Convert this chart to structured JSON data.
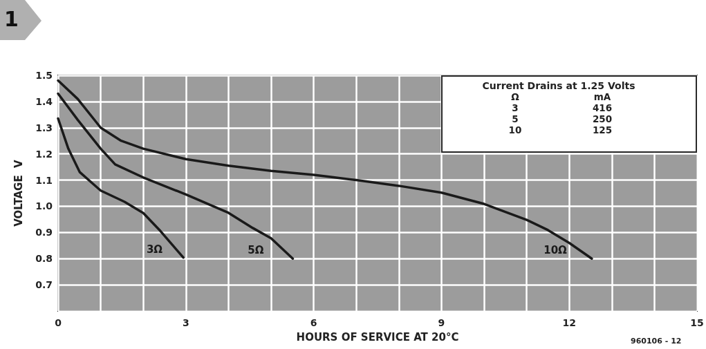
{
  "chart_data": {
    "type": "line",
    "xlabel": "HOURS OF SERVICE AT 20°C",
    "ylabel": "VOLTAGE  V",
    "annotations": [
      "Current Drains at 1.25 Volts",
      "Ω",
      "mA",
      "3",
      "416",
      "5",
      "250",
      "10",
      "125",
      "960106 - 12",
      "1"
    ],
    "series": [
      {
        "name": "3Ω",
        "color": "#1a1a1a",
        "x": [
          0,
          0.24,
          0.51,
          1,
          1.56,
          2,
          2.41,
          2.94
        ],
        "values": [
          1.335,
          1.22,
          1.13,
          1.06,
          1.017,
          0.974,
          0.904,
          0.804
        ]
      },
      {
        "name": "5Ω",
        "color": "#1a1a1a",
        "x": [
          0,
          0.46,
          1,
          1.34,
          2,
          3,
          4,
          4.57,
          5,
          5.51
        ],
        "values": [
          1.43,
          1.33,
          1.22,
          1.16,
          1.11,
          1.045,
          0.975,
          0.917,
          0.878,
          0.8
        ]
      },
      {
        "name": "10Ω",
        "color": "#1a1a1a",
        "x": [
          0,
          0.46,
          1,
          1.48,
          2,
          3,
          4,
          5,
          6,
          7,
          8,
          9,
          10,
          11,
          11.5,
          12,
          12.53
        ],
        "values": [
          1.48,
          1.41,
          1.3,
          1.25,
          1.22,
          1.18,
          1.155,
          1.135,
          1.12,
          1.1,
          1.078,
          1.052,
          1.009,
          0.948,
          0.909,
          0.86,
          0.8
        ]
      }
    ],
    "xlim": [
      0,
      15
    ],
    "xticks": [
      0,
      {
        "value": 1,
        "label": null
      },
      {
        "value": 2,
        "label": null
      },
      3,
      {
        "value": 4,
        "label": null
      },
      {
        "value": 5,
        "label": null
      },
      6,
      {
        "value": 7,
        "label": null
      },
      {
        "value": 8,
        "label": null
      },
      9,
      {
        "value": 10,
        "label": null
      },
      {
        "value": 11,
        "label": null
      },
      12,
      {
        "value": 13,
        "label": null
      },
      {
        "value": 14,
        "label": null
      },
      15
    ],
    "ylim": [
      0.6,
      1.5
    ],
    "yticks": [
      {
        "value": 0.6,
        "label": null
      },
      0.7,
      0.8,
      0.9,
      {
        "value": 1,
        "label": "1.0"
      },
      1.1,
      1.2,
      1.3,
      1.4,
      1.5
    ],
    "grid": true,
    "legend": false,
    "marker": "none",
    "line_style": "solid"
  }
}
